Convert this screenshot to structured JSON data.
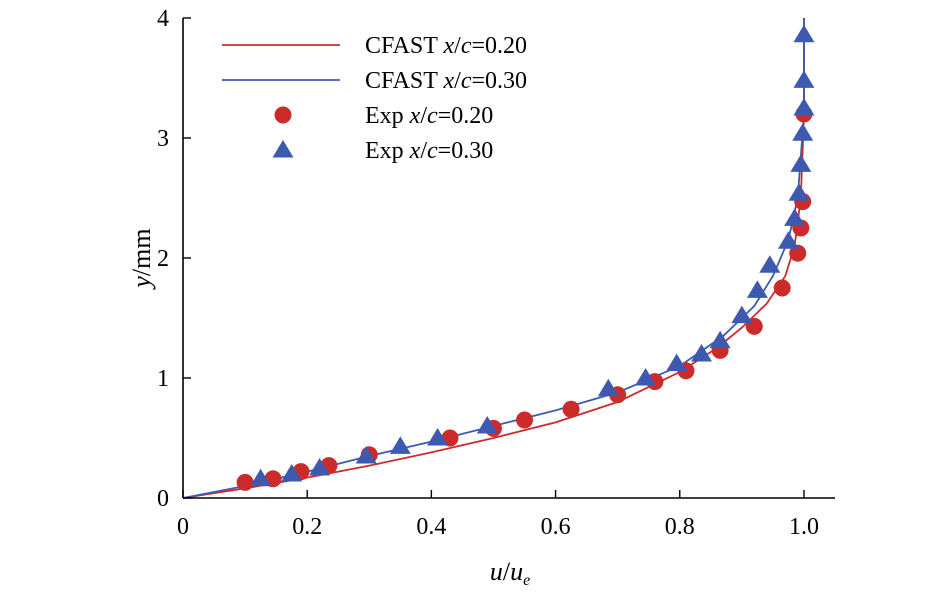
{
  "chart_data": {
    "type": "line",
    "xlabel": {
      "main": "u",
      "sep": "/",
      "sub_base": "u",
      "sub": "e"
    },
    "ylabel": {
      "var": "y",
      "unit": "/mm"
    },
    "xlim": [
      0,
      1.05
    ],
    "ylim": [
      0,
      4
    ],
    "x_ticks": [
      0,
      0.2,
      0.4,
      0.6,
      0.8,
      1.0
    ],
    "x_tick_labels": [
      "0",
      "0.2",
      "0.4",
      "0.6",
      "0.8",
      "1.0"
    ],
    "y_ticks": [
      0,
      1,
      2,
      3,
      4
    ],
    "y_tick_labels": [
      "0",
      "1",
      "2",
      "3",
      "4"
    ],
    "grid": false,
    "legend_position": "top-left",
    "colors": {
      "red": "#cc2b2b",
      "blue": "#3d5ab0"
    },
    "series": [
      {
        "name": "CFAST x/c=0.20",
        "legend": {
          "prefix": "CFAST ",
          "var": "x",
          "sep": "/",
          "var2": "c",
          "suffix": "=0.20"
        },
        "kind": "line",
        "color": "#cc2b2b",
        "x": [
          0,
          0.1,
          0.2,
          0.3,
          0.4,
          0.5,
          0.6,
          0.7,
          0.8,
          0.86,
          0.9,
          0.94,
          0.97,
          0.985,
          0.995,
          1.0,
          1.0
        ],
        "y": [
          0,
          0.08,
          0.17,
          0.27,
          0.38,
          0.5,
          0.63,
          0.8,
          1.05,
          1.25,
          1.42,
          1.62,
          1.85,
          2.1,
          2.5,
          3.2,
          4.0
        ]
      },
      {
        "name": "CFAST x/c=0.30",
        "legend": {
          "prefix": "CFAST ",
          "var": "x",
          "sep": "/",
          "var2": "c",
          "suffix": "=0.30"
        },
        "kind": "line",
        "color": "#3d5ab0",
        "x": [
          0,
          0.1,
          0.2,
          0.3,
          0.4,
          0.5,
          0.6,
          0.7,
          0.8,
          0.87,
          0.92,
          0.95,
          0.975,
          0.99,
          1.0,
          1.0
        ],
        "y": [
          0,
          0.1,
          0.22,
          0.35,
          0.47,
          0.6,
          0.73,
          0.88,
          1.1,
          1.35,
          1.6,
          1.85,
          2.15,
          2.5,
          3.2,
          4.0
        ]
      },
      {
        "name": "Exp x/c=0.20",
        "legend": {
          "prefix": "Exp ",
          "var": "x",
          "sep": "/",
          "var2": "c",
          "suffix": "=0.20"
        },
        "kind": "scatter",
        "marker": "circle",
        "color": "#cc2b2b",
        "x": [
          0.1,
          0.145,
          0.19,
          0.235,
          0.3,
          0.43,
          0.5,
          0.55,
          0.625,
          0.7,
          0.76,
          0.81,
          0.865,
          0.92,
          0.965,
          0.99,
          0.995,
          0.998,
          1.0
        ],
        "y": [
          0.13,
          0.16,
          0.22,
          0.27,
          0.36,
          0.5,
          0.58,
          0.65,
          0.74,
          0.86,
          0.97,
          1.06,
          1.23,
          1.43,
          1.75,
          2.04,
          2.25,
          2.47,
          3.2
        ]
      },
      {
        "name": "Exp x/c=0.30",
        "legend": {
          "prefix": "Exp ",
          "var": "x",
          "sep": "/",
          "var2": "c",
          "suffix": "=0.30"
        },
        "kind": "scatter",
        "marker": "triangle",
        "color": "#3d5ab0",
        "x": [
          0.125,
          0.175,
          0.22,
          0.295,
          0.35,
          0.41,
          0.49,
          0.685,
          0.745,
          0.795,
          0.835,
          0.865,
          0.9,
          0.925,
          0.945,
          0.975,
          0.985,
          0.992,
          0.995,
          0.998,
          1.0,
          1.0,
          1.0
        ],
        "y": [
          0.16,
          0.2,
          0.25,
          0.35,
          0.43,
          0.5,
          0.6,
          0.91,
          1.0,
          1.12,
          1.2,
          1.31,
          1.52,
          1.73,
          1.94,
          2.14,
          2.33,
          2.54,
          2.78,
          3.04,
          3.25,
          3.48,
          3.86
        ]
      }
    ]
  }
}
